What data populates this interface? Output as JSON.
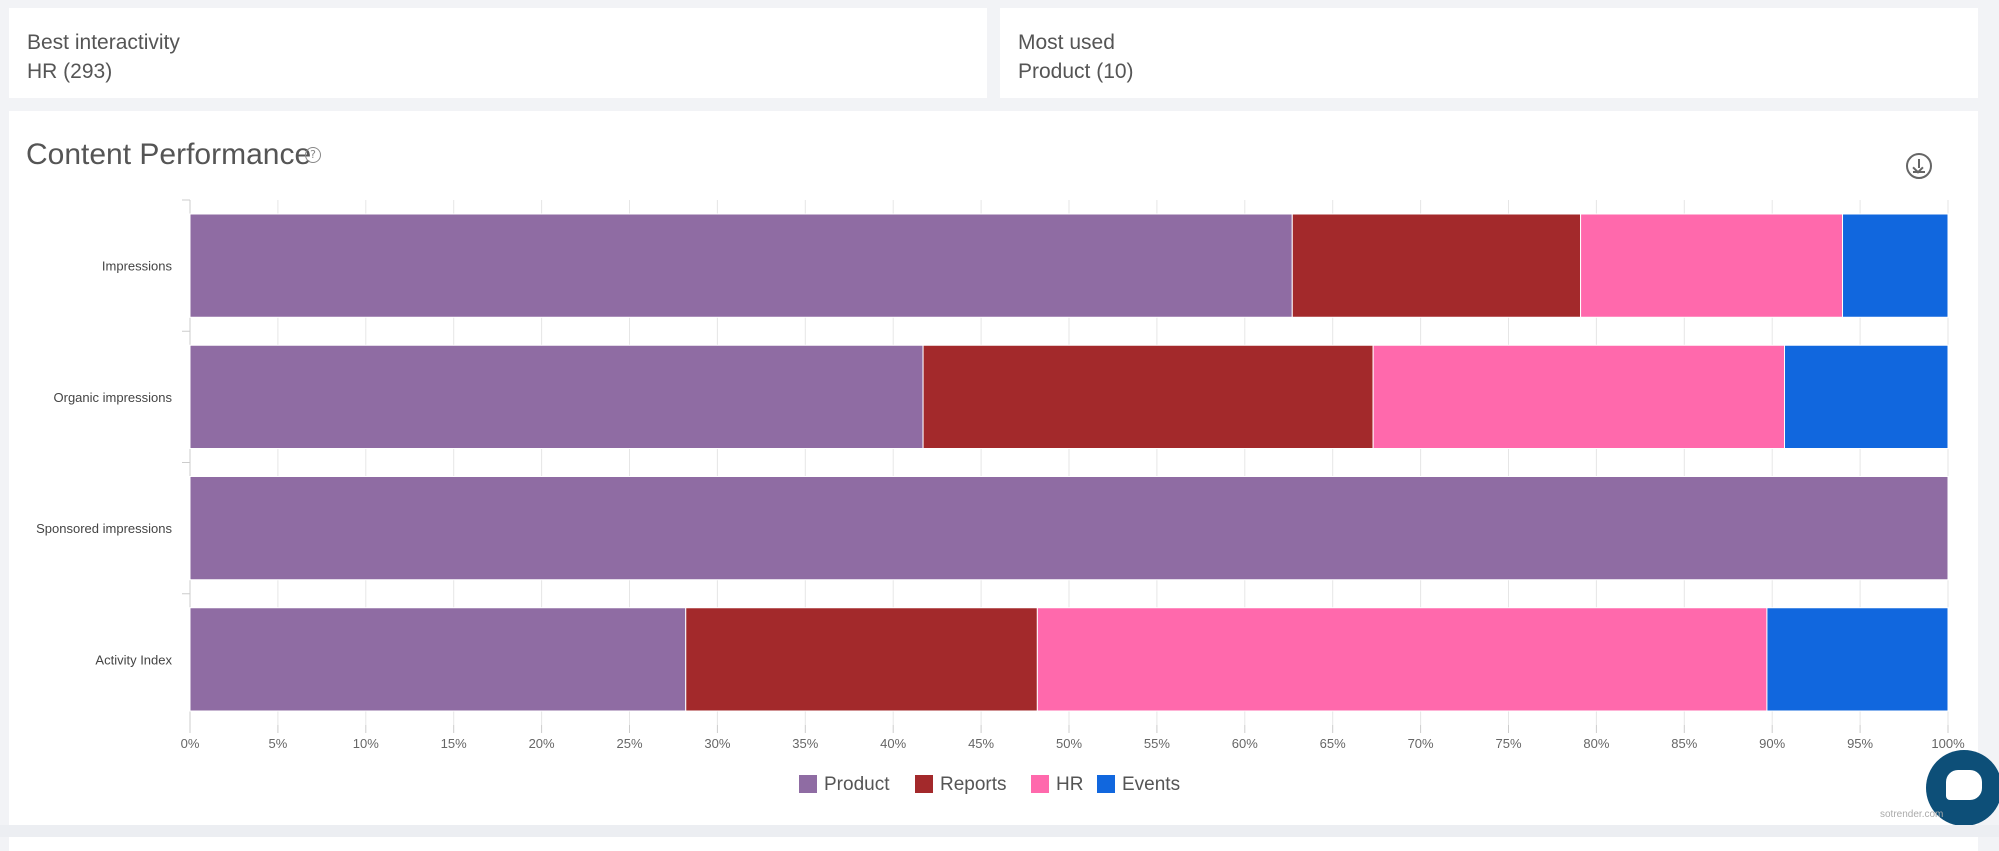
{
  "kpis": [
    {
      "label": "Best interactivity",
      "value": "HR (293)"
    },
    {
      "label": "Most used",
      "value": "Product (10)"
    }
  ],
  "panel": {
    "title": "Content Performance",
    "help_icon": "question-circle-icon",
    "download_icon": "download-circle-icon"
  },
  "chart_data": {
    "type": "bar",
    "orientation": "horizontal",
    "stacked": "percent",
    "categories": [
      "Impressions",
      "Organic impressions",
      "Sponsored impressions",
      "Activity Index"
    ],
    "series": [
      {
        "name": "Product",
        "color": "#8f6ca3",
        "values": [
          62.7,
          41.7,
          100,
          28.2
        ]
      },
      {
        "name": "Reports",
        "color": "#a3292b",
        "values": [
          16.4,
          25.6,
          0,
          20.0
        ]
      },
      {
        "name": "HR",
        "color": "#ff69ac",
        "values": [
          14.9,
          23.4,
          0,
          41.5
        ]
      },
      {
        "name": "Events",
        "color": "#1167de",
        "values": [
          6.0,
          9.3,
          0,
          10.3
        ]
      }
    ],
    "x_ticks": [
      "0%",
      "5%",
      "10%",
      "15%",
      "20%",
      "25%",
      "30%",
      "35%",
      "40%",
      "45%",
      "50%",
      "55%",
      "60%",
      "65%",
      "70%",
      "75%",
      "80%",
      "85%",
      "90%",
      "95%",
      "100%"
    ],
    "xlim": [
      0,
      100
    ],
    "grid": true,
    "legend": "bottom"
  },
  "watermark": "sotrender.com",
  "chat": {
    "icon": "chat-bubble-icon"
  }
}
